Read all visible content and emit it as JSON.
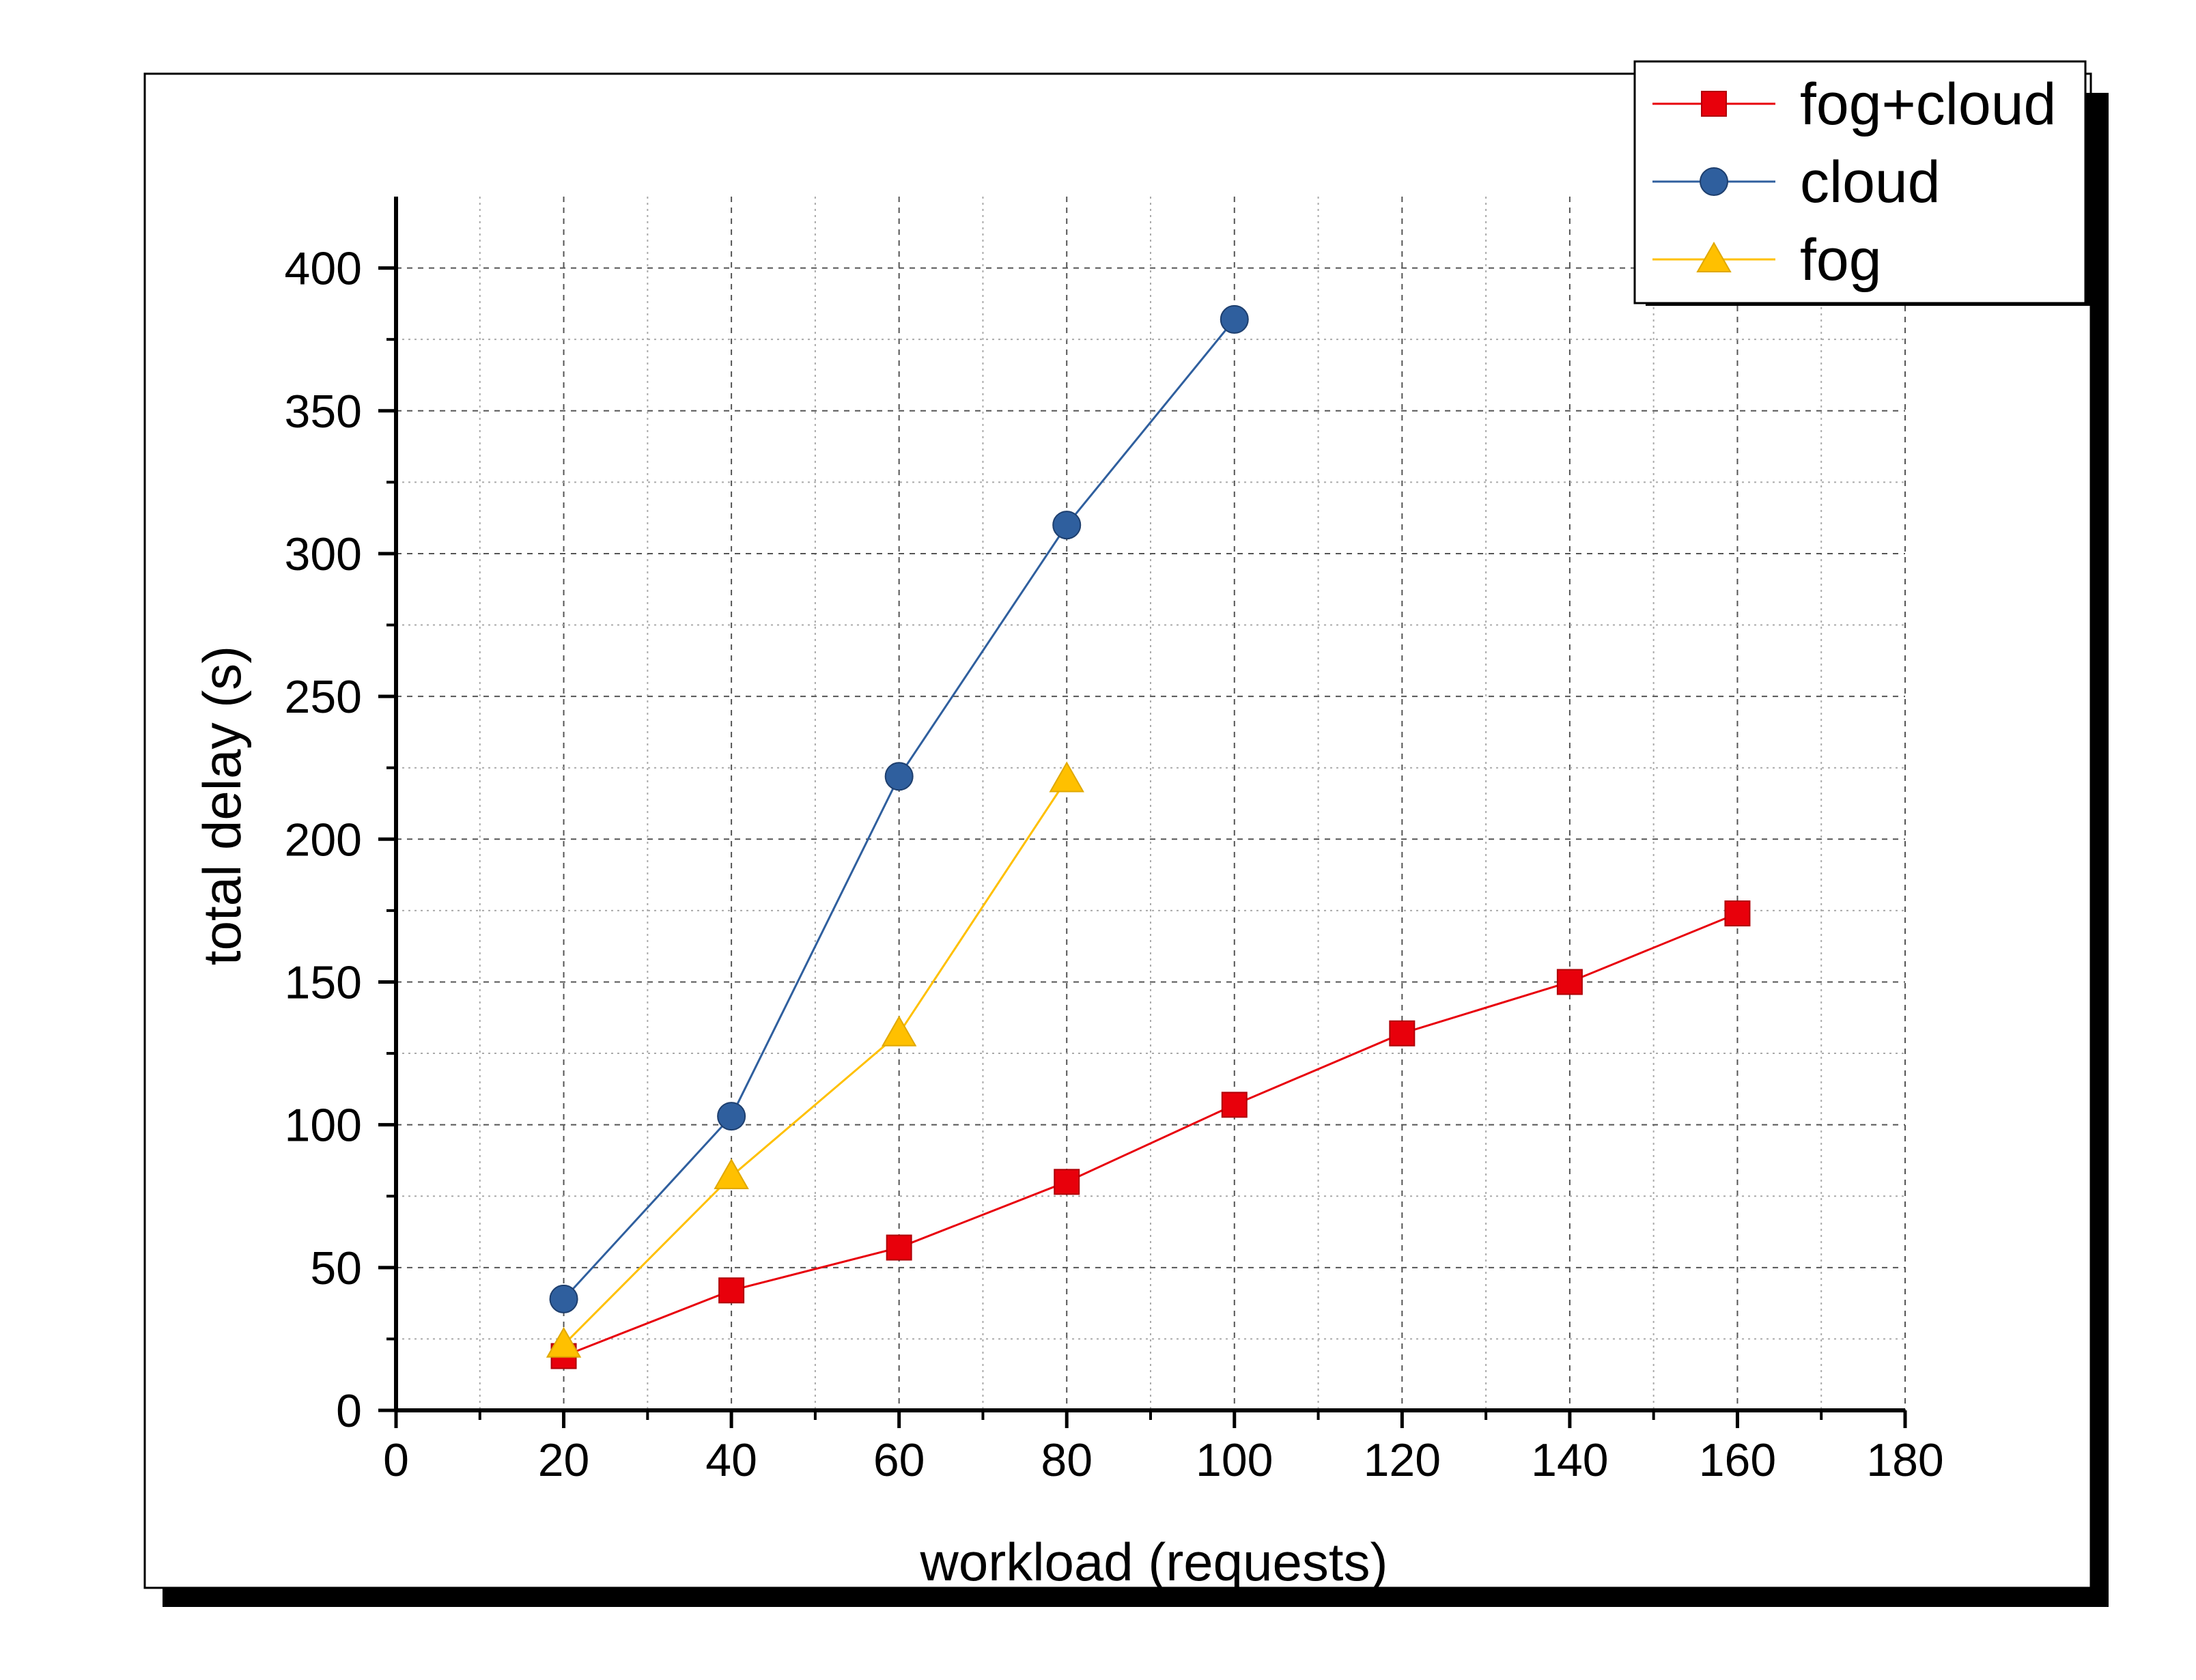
{
  "chart_data": {
    "type": "line",
    "title": "",
    "xlabel": "workload (requests)",
    "ylabel": "total delay (s)",
    "xlim": [
      0,
      180
    ],
    "ylim": [
      0,
      425
    ],
    "xticks": [
      0,
      20,
      40,
      60,
      80,
      100,
      120,
      140,
      160,
      180
    ],
    "yticks": [
      0,
      50,
      100,
      150,
      200,
      250,
      300,
      350,
      400
    ],
    "grid": true,
    "legend_position": "top-right",
    "series": [
      {
        "name": "fog+cloud",
        "color": "#e8000b",
        "marker": "square",
        "x": [
          20,
          40,
          60,
          80,
          100,
          120,
          140,
          160
        ],
        "y": [
          19,
          42,
          57,
          80,
          107,
          132,
          150,
          174
        ]
      },
      {
        "name": "cloud",
        "color": "#2f5f9e",
        "marker": "circle",
        "x": [
          20,
          40,
          60,
          80,
          100
        ],
        "y": [
          39,
          103,
          222,
          310,
          382
        ]
      },
      {
        "name": "fog",
        "color": "#ffc000",
        "marker": "triangle",
        "x": [
          20,
          40,
          60,
          80
        ],
        "y": [
          23,
          82,
          132,
          221
        ]
      }
    ]
  }
}
